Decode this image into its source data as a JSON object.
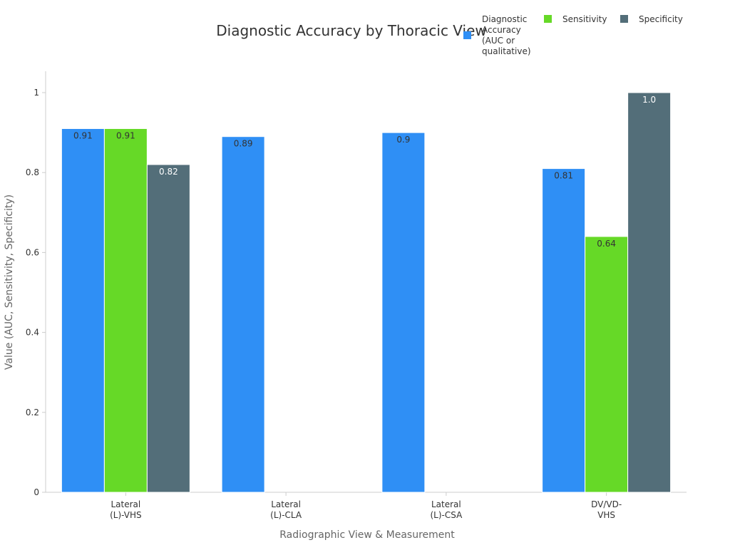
{
  "chart_data": {
    "type": "bar",
    "title": "Diagnostic Accuracy by Thoracic View",
    "xlabel": "Radiographic View & Measurement",
    "ylabel": "Value (AUC, Sensitivity, Specificity)",
    "ylim": [
      0,
      1.05
    ],
    "yticks": [
      "0",
      "0.2",
      "0.4",
      "0.6",
      "0.8",
      "1"
    ],
    "grid": false,
    "legend_position": "top-right",
    "categories": [
      [
        "Lateral",
        "(L)-VHS"
      ],
      [
        "Lateral",
        "(L)-CLA"
      ],
      [
        "Lateral",
        "(L)-CSA"
      ],
      [
        "DV/VD-",
        "VHS"
      ]
    ],
    "series": [
      {
        "name": "Diagnostic Accuracy (AUC or qualitative)",
        "legend_lines": [
          "Diagnostic",
          "Accuracy",
          "(AUC or",
          "qualitative)"
        ],
        "color": "#2f8ff5",
        "values": [
          0.91,
          0.89,
          0.9,
          0.81
        ],
        "labels": [
          "0.91",
          "0.89",
          "0.9",
          "0.81"
        ],
        "label_color": "#333333"
      },
      {
        "name": "Sensitivity",
        "legend_lines": [
          "Sensitivity"
        ],
        "color": "#66d927",
        "values": [
          0.91,
          null,
          null,
          0.64
        ],
        "labels": [
          "0.91",
          "",
          "",
          "0.64"
        ],
        "label_color": "#333333"
      },
      {
        "name": "Specificity",
        "legend_lines": [
          "Specificity"
        ],
        "color": "#536e79",
        "values": [
          0.82,
          null,
          null,
          1.0
        ],
        "labels": [
          "0.82",
          "",
          "",
          "1.0"
        ],
        "label_color": "#ffffff"
      }
    ]
  }
}
